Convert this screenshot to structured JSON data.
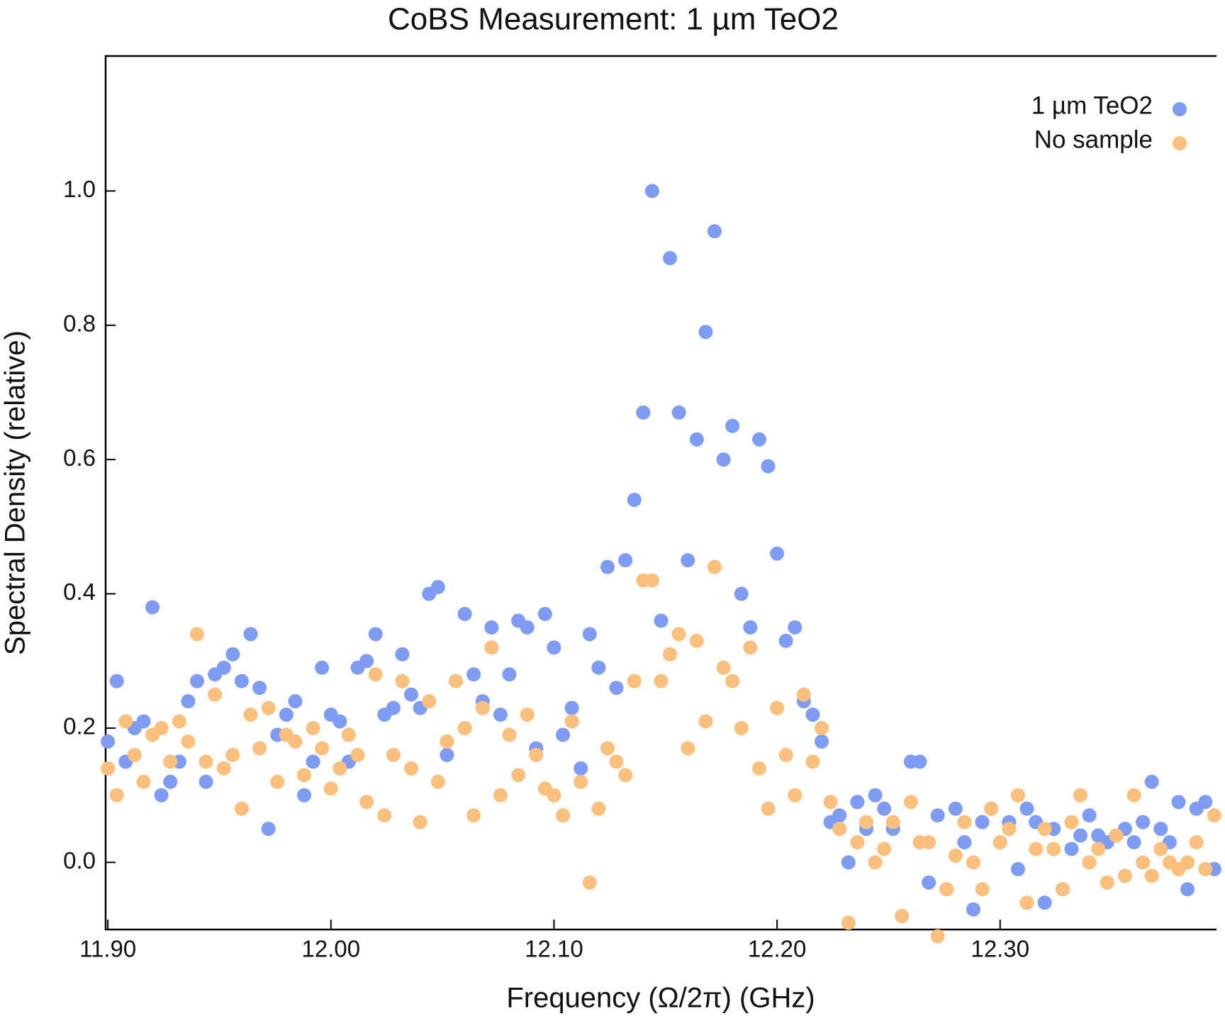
{
  "chart_data": {
    "type": "scatter",
    "title": "CoBS Measurement: 1 µm TeO2",
    "x_label": "Frequency (Ω/2π) (GHz)",
    "y_label": "Spectral Density (relative)",
    "xlim": [
      11.899,
      12.397
    ],
    "ylim": [
      -0.1,
      1.201
    ],
    "xticks": [
      {
        "value": 11.9,
        "label": "11.90"
      },
      {
        "value": 12.0,
        "label": "12.00"
      },
      {
        "value": 12.1,
        "label": "12.10"
      },
      {
        "value": 12.2,
        "label": "12.20"
      },
      {
        "value": 12.3,
        "label": "12.30"
      }
    ],
    "yticks": [
      {
        "value": 0,
        "label": "0.0"
      },
      0.2,
      0.4,
      0.6,
      0.8,
      {
        "value": 1,
        "label": "1.0"
      }
    ],
    "legend": "upper right",
    "grid": false,
    "x": [
      11.9,
      11.904,
      11.908,
      11.912,
      11.916,
      11.92,
      11.924,
      11.928,
      11.932,
      11.936,
      11.94,
      11.944,
      11.948,
      11.952,
      11.956,
      11.96,
      11.964,
      11.968,
      11.972,
      11.976,
      11.98,
      11.984,
      11.988,
      11.992,
      11.996,
      12.0,
      12.004,
      12.008,
      12.012,
      12.016,
      12.02,
      12.024,
      12.028,
      12.032,
      12.036,
      12.04,
      12.044,
      12.048,
      12.052,
      12.056,
      12.06,
      12.064,
      12.068,
      12.072,
      12.076,
      12.08,
      12.084,
      12.088,
      12.092,
      12.096,
      12.1,
      12.104,
      12.108,
      12.112,
      12.116,
      12.12,
      12.124,
      12.128,
      12.132,
      12.136,
      12.14,
      12.144,
      12.148,
      12.152,
      12.156,
      12.16,
      12.164,
      12.168,
      12.172,
      12.176,
      12.18,
      12.184,
      12.188,
      12.192,
      12.196,
      12.2,
      12.204,
      12.208,
      12.212,
      12.216,
      12.22,
      12.224,
      12.228,
      12.232,
      12.236,
      12.24,
      12.244,
      12.248,
      12.252,
      12.256,
      12.26,
      12.264,
      12.268,
      12.272,
      12.276,
      12.28,
      12.284,
      12.288,
      12.292,
      12.296,
      12.3,
      12.304,
      12.308,
      12.312,
      12.316,
      12.32,
      12.324,
      12.328,
      12.332,
      12.336,
      12.34,
      12.344,
      12.348,
      12.352,
      12.356,
      12.36,
      12.364,
      12.368,
      12.372,
      12.376,
      12.38,
      12.384,
      12.388,
      12.392,
      12.396
    ],
    "series": [
      {
        "name": "1 µm TeO2",
        "color": "#7f9cf5",
        "values": [
          0.18,
          0.27,
          0.15,
          0.2,
          0.21,
          0.38,
          0.1,
          0.12,
          0.15,
          0.24,
          0.27,
          0.12,
          0.28,
          0.29,
          0.31,
          0.27,
          0.34,
          0.26,
          0.05,
          0.19,
          0.22,
          0.24,
          0.1,
          0.15,
          0.29,
          0.22,
          0.21,
          0.15,
          0.29,
          0.3,
          0.34,
          0.22,
          0.23,
          0.31,
          0.25,
          0.23,
          0.4,
          0.41,
          0.16,
          0.27,
          0.37,
          0.28,
          0.24,
          0.35,
          0.22,
          0.28,
          0.36,
          0.35,
          0.17,
          0.37,
          0.32,
          0.19,
          0.23,
          0.14,
          0.34,
          0.29,
          0.44,
          0.26,
          0.45,
          0.54,
          0.67,
          1.0,
          0.36,
          0.9,
          0.67,
          0.45,
          0.63,
          0.79,
          0.94,
          0.6,
          0.65,
          0.4,
          0.35,
          0.63,
          0.59,
          0.46,
          0.33,
          0.35,
          0.24,
          0.22,
          0.18,
          0.06,
          0.07,
          0.0,
          0.09,
          0.05,
          0.1,
          0.08,
          0.05,
          -0.08,
          0.15,
          0.15,
          -0.03,
          0.07,
          -0.04,
          0.08,
          0.03,
          -0.07,
          0.06,
          0.08,
          0.03,
          0.06,
          -0.01,
          0.08,
          0.06,
          -0.06,
          0.05,
          -0.04,
          0.02,
          0.04,
          0.07,
          0.04,
          0.03,
          0.04,
          0.05,
          0.03,
          0.06,
          0.12,
          0.05,
          0.03,
          0.09,
          -0.04,
          0.08,
          0.09,
          -0.01
        ]
      },
      {
        "name": "No sample",
        "color": "#fcbf7c",
        "values": [
          0.14,
          0.1,
          0.21,
          0.16,
          0.12,
          0.19,
          0.2,
          0.15,
          0.21,
          0.18,
          0.34,
          0.15,
          0.25,
          0.14,
          0.16,
          0.08,
          0.22,
          0.17,
          0.23,
          0.12,
          0.19,
          0.18,
          0.13,
          0.2,
          0.17,
          0.11,
          0.14,
          0.19,
          0.16,
          0.09,
          0.28,
          0.07,
          0.16,
          0.27,
          0.14,
          0.06,
          0.24,
          0.12,
          0.18,
          0.27,
          0.2,
          0.07,
          0.23,
          0.32,
          0.1,
          0.19,
          0.13,
          0.22,
          0.16,
          0.11,
          0.1,
          0.07,
          0.21,
          0.12,
          -0.03,
          0.08,
          0.17,
          0.15,
          0.13,
          0.27,
          0.42,
          0.42,
          0.27,
          0.31,
          0.34,
          0.17,
          0.33,
          0.21,
          0.44,
          0.29,
          0.27,
          0.2,
          0.32,
          0.14,
          0.08,
          0.23,
          0.16,
          0.1,
          0.25,
          0.15,
          0.2,
          0.09,
          0.05,
          -0.09,
          0.03,
          0.06,
          0.0,
          0.02,
          0.06,
          -0.08,
          0.09,
          0.03,
          0.03,
          -0.11,
          -0.04,
          0.01,
          0.06,
          0.0,
          -0.04,
          0.08,
          0.03,
          0.05,
          0.1,
          -0.06,
          0.02,
          0.05,
          0.02,
          -0.04,
          0.06,
          0.1,
          0.0,
          0.02,
          -0.03,
          0.04,
          -0.02,
          0.1,
          0.0,
          -0.02,
          0.02,
          0.0,
          -0.01,
          0.0,
          0.03,
          -0.01,
          0.07
        ]
      }
    ]
  }
}
